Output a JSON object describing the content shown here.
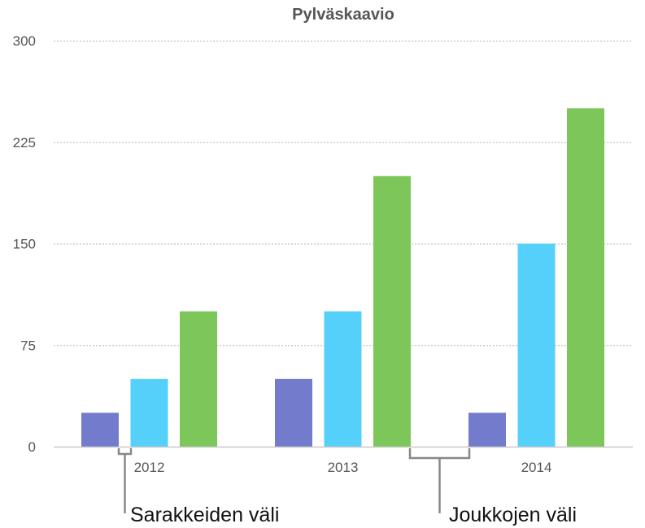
{
  "chart_data": {
    "type": "bar",
    "title": "Pylväskaavio",
    "xlabel": "",
    "ylabel": "",
    "categories": [
      "2012",
      "2013",
      "2014"
    ],
    "series": [
      {
        "values": [
          25,
          50,
          25
        ],
        "color": "#737bcc"
      },
      {
        "values": [
          50,
          100,
          150
        ],
        "color": "#55d0fb"
      },
      {
        "values": [
          100,
          200,
          250
        ],
        "color": "#7dc75a"
      }
    ],
    "ylim": [
      0,
      300
    ],
    "yticks": [
      "0",
      "75",
      "150",
      "225",
      "300"
    ],
    "grid": true,
    "legend": "none",
    "annotations": [
      {
        "text": "Sarakkeiden väli"
      },
      {
        "text": "Joukkojen väli"
      }
    ]
  }
}
